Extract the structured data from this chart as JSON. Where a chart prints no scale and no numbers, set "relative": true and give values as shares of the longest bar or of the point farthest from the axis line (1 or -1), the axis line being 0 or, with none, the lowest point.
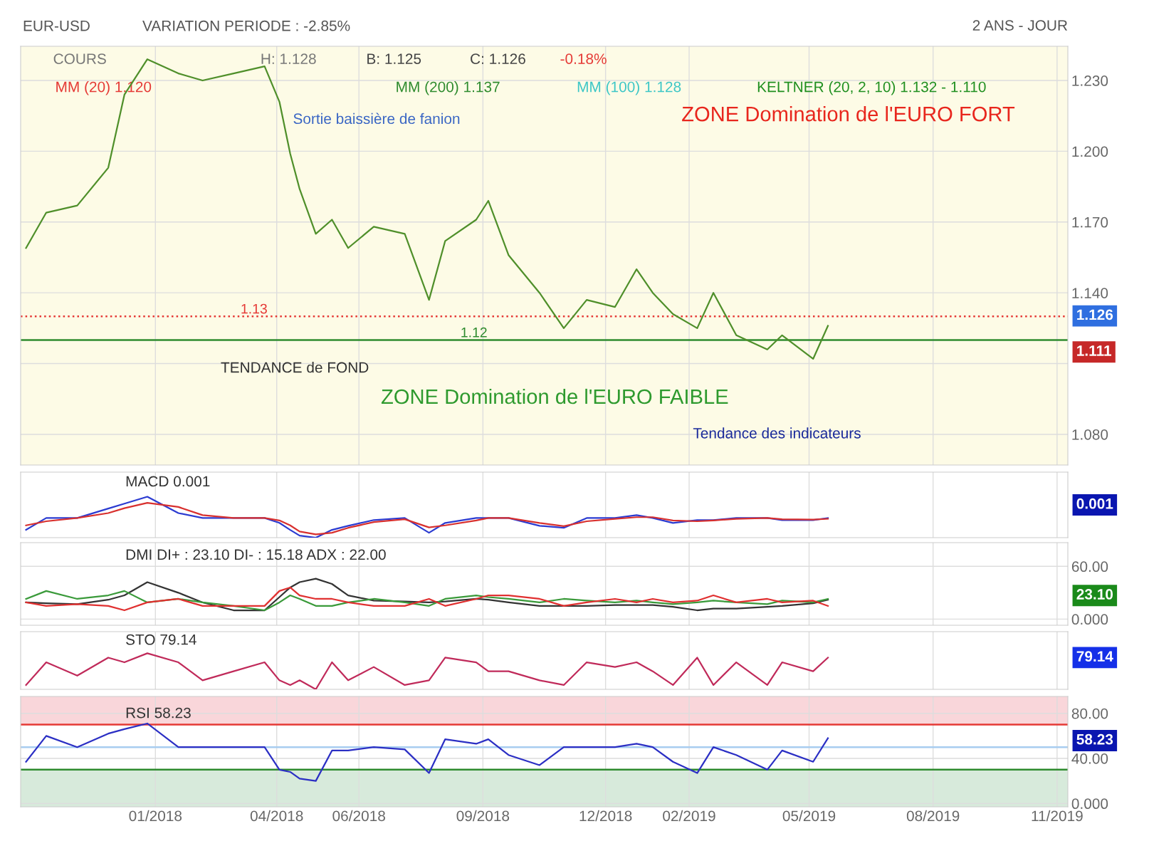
{
  "chart_data": [
    {
      "type": "line",
      "title": "EUR-USD",
      "subtitle": "VARIATION PERIODE : -2.85%",
      "x": [
        "2017-09-27",
        "2017-10-12",
        "2017-11-04",
        "2017-11-27",
        "2017-12-09",
        "2017-12-26",
        "2018-01-18",
        "2018-02-05",
        "2018-02-28",
        "2018-03-23",
        "2018-04-03",
        "2018-04-11",
        "2018-04-18",
        "2018-04-30",
        "2018-05-12",
        "2018-05-24",
        "2018-06-12",
        "2018-07-05",
        "2018-07-23",
        "2018-08-04",
        "2018-08-27",
        "2018-09-05",
        "2018-09-20",
        "2018-10-13",
        "2018-10-31",
        "2018-11-17",
        "2018-12-08",
        "2018-12-24",
        "2019-01-05",
        "2019-01-20",
        "2019-02-07",
        "2019-02-19",
        "2019-03-08",
        "2019-03-31",
        "2019-04-11",
        "2019-05-04",
        "2019-05-15"
      ],
      "series": [
        {
          "color": "#4f8f2a",
          "values": [
            1.159,
            1.174,
            1.177,
            1.193,
            1.224,
            1.239,
            1.233,
            1.23,
            1.233,
            1.236,
            1.221,
            1.199,
            1.184,
            1.165,
            1.171,
            1.159,
            1.168,
            1.165,
            1.137,
            1.162,
            1.171,
            1.179,
            1.156,
            1.14,
            1.125,
            1.137,
            1.134,
            1.15,
            1.14,
            1.131,
            1.125,
            1.14,
            1.122,
            1.116,
            1.122,
            1.112,
            1.126
          ]
        }
      ],
      "xlim": [
        "2017-09-23",
        "2019-11-09"
      ],
      "xticks": [
        {
          "value": "2018-01-01",
          "label": null
        },
        {
          "value": "2018-04-01",
          "label": null
        },
        {
          "value": "2018-06-01",
          "label": null
        },
        {
          "value": "2018-09-01",
          "label": null
        },
        {
          "value": "2018-12-01",
          "label": null
        },
        {
          "value": "2019-02-01",
          "label": null
        },
        {
          "value": "2019-05-01",
          "label": null
        },
        {
          "value": "2019-08-01",
          "label": null
        },
        {
          "value": "2019-11-01",
          "label": null
        }
      ],
      "ylim": [
        1.067,
        1.2445
      ],
      "yticks": [
        {
          "value": 1.08,
          "label": "1.080"
        },
        {
          "value": 1.11,
          "label": null
        },
        {
          "value": 1.14,
          "label": "1.140"
        },
        {
          "value": 1.17,
          "label": "1.170"
        },
        {
          "value": 1.2,
          "label": "1.200"
        },
        {
          "value": 1.23,
          "label": "1.230"
        }
      ],
      "tick_labels": "y",
      "grid": true,
      "ref_lines": [
        {
          "axis": "y",
          "value": 1.13,
          "label": "1.13",
          "color": "#e53935",
          "line_style": "dotted"
        },
        {
          "axis": "y",
          "value": 1.12,
          "label": "1.12",
          "color": "#2e8b2e",
          "line_style": "solid"
        }
      ],
      "annotations": [
        "2 ANS - JOUR",
        "COURS",
        "H: 1.128",
        "B: 1.125",
        "C: 1.126",
        "-0.18%",
        "MM (20) 1.120",
        "MM (200) 1.137",
        "MM (100) 1.128",
        "KELTNER (20, 2, 10) 1.132 - 1.110",
        "Sortie baissière de fanion",
        "ZONE Domination de l'EURO FORT",
        "TENDANCE de FOND",
        "ZONE Domination de l'EURO FAIBLE",
        "Tendance des indicateurs",
        "1.126",
        "1.111"
      ]
    },
    {
      "type": "line",
      "title": "MACD 0.001",
      "relative": true,
      "x": [
        "2017-09-27",
        "2017-10-12",
        "2017-11-04",
        "2017-11-27",
        "2017-12-09",
        "2017-12-26",
        "2018-01-18",
        "2018-02-05",
        "2018-02-28",
        "2018-03-23",
        "2018-04-03",
        "2018-04-11",
        "2018-04-18",
        "2018-04-30",
        "2018-05-12",
        "2018-05-24",
        "2018-06-12",
        "2018-07-05",
        "2018-07-23",
        "2018-08-04",
        "2018-08-27",
        "2018-09-05",
        "2018-09-20",
        "2018-10-13",
        "2018-10-31",
        "2018-11-17",
        "2018-12-08",
        "2018-12-24",
        "2019-01-05",
        "2019-01-20",
        "2019-02-07",
        "2019-02-19",
        "2019-03-08",
        "2019-03-31",
        "2019-04-11",
        "2019-05-04",
        "2019-05-15"
      ],
      "series": [
        {
          "color": "#2b3bd1",
          "values": [
            0.19,
            0.48,
            0.48,
            0.71,
            0.83,
            1,
            0.6,
            0.48,
            0.48,
            0.48,
            0.36,
            0.19,
            0.05,
            0,
            0.19,
            0.29,
            0.43,
            0.48,
            0.12,
            0.36,
            0.48,
            0.48,
            0.48,
            0.29,
            0.24,
            0.48,
            0.48,
            0.55,
            0.48,
            0.36,
            0.43,
            0.43,
            0.48,
            0.48,
            0.43,
            0.43,
            0.48
          ]
        },
        {
          "color": "#d8302e",
          "values": [
            0.3,
            0.4,
            0.48,
            0.6,
            0.72,
            0.85,
            0.75,
            0.55,
            0.48,
            0.48,
            0.42,
            0.3,
            0.15,
            0.08,
            0.12,
            0.24,
            0.38,
            0.45,
            0.25,
            0.3,
            0.42,
            0.48,
            0.48,
            0.36,
            0.28,
            0.4,
            0.46,
            0.5,
            0.5,
            0.42,
            0.4,
            0.42,
            0.46,
            0.48,
            0.45,
            0.44,
            0.46
          ]
        }
      ],
      "xlim": [
        "2017-09-23",
        "2019-11-09"
      ],
      "xticks": [
        {
          "value": "2018-01-01",
          "label": null
        },
        {
          "value": "2018-04-01",
          "label": null
        },
        {
          "value": "2018-06-01",
          "label": null
        },
        {
          "value": "2018-09-01",
          "label": null
        },
        {
          "value": "2018-12-01",
          "label": null
        },
        {
          "value": "2019-02-01",
          "label": null
        },
        {
          "value": "2019-05-01",
          "label": null
        },
        {
          "value": "2019-08-01",
          "label": null
        },
        {
          "value": "2019-11-01",
          "label": null
        }
      ],
      "tick_labels": false,
      "grid": true,
      "annotations": [
        "0.001"
      ]
    },
    {
      "type": "line",
      "title": "DMI DI+ : 23.10 DI- : 15.18 ADX : 22.00",
      "x": [
        "2017-09-27",
        "2017-10-12",
        "2017-11-04",
        "2017-11-27",
        "2017-12-09",
        "2017-12-26",
        "2018-01-18",
        "2018-02-05",
        "2018-02-28",
        "2018-03-23",
        "2018-04-03",
        "2018-04-11",
        "2018-04-18",
        "2018-04-30",
        "2018-05-12",
        "2018-05-24",
        "2018-06-12",
        "2018-07-05",
        "2018-07-23",
        "2018-08-04",
        "2018-08-27",
        "2018-09-05",
        "2018-09-20",
        "2018-10-13",
        "2018-10-31",
        "2018-11-17",
        "2018-12-08",
        "2018-12-24",
        "2019-01-05",
        "2019-01-20",
        "2019-02-07",
        "2019-02-19",
        "2019-03-08",
        "2019-03-31",
        "2019-04-11",
        "2019-05-04",
        "2019-05-15"
      ],
      "series": [
        {
          "color": "#333333",
          "values": [
            19,
            18,
            17,
            22,
            27,
            42,
            30,
            19,
            10,
            10,
            25,
            36,
            42,
            46,
            40,
            27,
            21,
            20,
            19,
            20,
            23,
            22,
            19,
            15,
            15,
            15,
            16,
            16,
            16,
            14,
            10,
            12,
            12,
            14,
            15,
            18,
            22
          ]
        },
        {
          "color": "#3a9a3a",
          "values": [
            23,
            32,
            23,
            27,
            32,
            19,
            23,
            19,
            15,
            10,
            19,
            27,
            23,
            15,
            15,
            19,
            23,
            19,
            15,
            23,
            27,
            25,
            23,
            19,
            23,
            21,
            19,
            21,
            19,
            17,
            19,
            21,
            19,
            17,
            21,
            19,
            23
          ]
        },
        {
          "color": "#e03030",
          "values": [
            19,
            15,
            17,
            15,
            10,
            19,
            23,
            15,
            15,
            15,
            32,
            36,
            27,
            23,
            23,
            19,
            15,
            15,
            23,
            15,
            23,
            27,
            27,
            23,
            15,
            19,
            23,
            19,
            23,
            19,
            21,
            27,
            19,
            23,
            19,
            21,
            15
          ]
        }
      ],
      "xlim": [
        "2017-09-23",
        "2019-11-09"
      ],
      "xticks": [
        {
          "value": "2018-01-01",
          "label": null
        },
        {
          "value": "2018-04-01",
          "label": null
        },
        {
          "value": "2018-06-01",
          "label": null
        },
        {
          "value": "2018-09-01",
          "label": null
        },
        {
          "value": "2018-12-01",
          "label": null
        },
        {
          "value": "2019-02-01",
          "label": null
        },
        {
          "value": "2019-05-01",
          "label": null
        },
        {
          "value": "2019-08-01",
          "label": null
        },
        {
          "value": "2019-11-01",
          "label": null
        }
      ],
      "ylim": [
        -7,
        87
      ],
      "yticks": [
        {
          "value": 0,
          "label": "0.000"
        },
        {
          "value": 60,
          "label": "60.00"
        }
      ],
      "tick_labels": "y",
      "grid": true,
      "annotations": [
        "23.10"
      ]
    },
    {
      "type": "line",
      "title": "STO 79.14",
      "relative": true,
      "x": [
        "2017-09-27",
        "2017-10-12",
        "2017-11-04",
        "2017-11-27",
        "2017-12-09",
        "2017-12-26",
        "2018-01-18",
        "2018-02-05",
        "2018-02-28",
        "2018-03-23",
        "2018-04-03",
        "2018-04-11",
        "2018-04-18",
        "2018-04-30",
        "2018-05-12",
        "2018-05-24",
        "2018-06-12",
        "2018-07-05",
        "2018-07-23",
        "2018-08-04",
        "2018-08-27",
        "2018-09-05",
        "2018-09-20",
        "2018-10-13",
        "2018-10-31",
        "2018-11-17",
        "2018-12-08",
        "2018-12-24",
        "2019-01-05",
        "2019-01-20",
        "2019-02-07",
        "2019-02-19",
        "2019-03-08",
        "2019-03-31",
        "2019-04-11",
        "2019-05-04",
        "2019-05-15"
      ],
      "series": [
        {
          "color": "#c02a5a",
          "values": [
            0.12,
            0.75,
            0.38,
            0.88,
            0.75,
            1,
            0.75,
            0.25,
            0.5,
            0.75,
            0.25,
            0.12,
            0.25,
            0,
            0.75,
            0.25,
            0.62,
            0.12,
            0.25,
            0.88,
            0.75,
            0.5,
            0.5,
            0.25,
            0.12,
            0.75,
            0.62,
            0.75,
            0.5,
            0.12,
            0.88,
            0.12,
            0.75,
            0.12,
            0.75,
            0.5,
            0.88
          ]
        }
      ],
      "xlim": [
        "2017-09-23",
        "2019-11-09"
      ],
      "xticks": [
        {
          "value": "2018-01-01",
          "label": null
        },
        {
          "value": "2018-04-01",
          "label": null
        },
        {
          "value": "2018-06-01",
          "label": null
        },
        {
          "value": "2018-09-01",
          "label": null
        },
        {
          "value": "2018-12-01",
          "label": null
        },
        {
          "value": "2019-02-01",
          "label": null
        },
        {
          "value": "2019-05-01",
          "label": null
        },
        {
          "value": "2019-08-01",
          "label": null
        },
        {
          "value": "2019-11-01",
          "label": null
        }
      ],
      "tick_labels": false,
      "grid": true,
      "annotations": [
        "79.14"
      ]
    },
    {
      "type": "line",
      "title": "RSI 58.23",
      "x": [
        "2017-09-27",
        "2017-10-12",
        "2017-11-04",
        "2017-11-27",
        "2017-12-09",
        "2017-12-26",
        "2018-01-18",
        "2018-02-05",
        "2018-02-28",
        "2018-03-23",
        "2018-04-03",
        "2018-04-11",
        "2018-04-18",
        "2018-04-30",
        "2018-05-12",
        "2018-05-24",
        "2018-06-12",
        "2018-07-05",
        "2018-07-23",
        "2018-08-04",
        "2018-08-27",
        "2018-09-05",
        "2018-09-20",
        "2018-10-13",
        "2018-10-31",
        "2018-11-17",
        "2018-12-08",
        "2018-12-24",
        "2019-01-05",
        "2019-01-20",
        "2019-02-07",
        "2019-02-19",
        "2019-03-08",
        "2019-03-31",
        "2019-04-11",
        "2019-05-04",
        "2019-05-15"
      ],
      "series": [
        {
          "color": "#2b2fc4",
          "values": [
            37,
            60,
            50,
            62,
            66,
            71,
            50,
            50,
            50,
            50,
            30,
            28,
            22,
            20,
            47,
            47,
            50,
            48,
            27,
            57,
            53,
            57,
            43,
            34,
            50,
            50,
            50,
            53,
            50,
            37,
            27,
            50,
            43,
            30,
            47,
            37,
            58
          ]
        }
      ],
      "xlim": [
        "2017-09-23",
        "2019-11-09"
      ],
      "xticks": [
        {
          "value": "2018-01-01",
          "label": "01/2018"
        },
        {
          "value": "2018-04-01",
          "label": "04/2018"
        },
        {
          "value": "2018-06-01",
          "label": "06/2018"
        },
        {
          "value": "2018-09-01",
          "label": "09/2018"
        },
        {
          "value": "2018-12-01",
          "label": "12/2018"
        },
        {
          "value": "2019-02-01",
          "label": "02/2019"
        },
        {
          "value": "2019-05-01",
          "label": "05/2019"
        },
        {
          "value": "2019-08-01",
          "label": "08/2019"
        },
        {
          "value": "2019-11-01",
          "label": "11/2019"
        }
      ],
      "ylim": [
        -3,
        95
      ],
      "yticks": [
        {
          "value": 0,
          "label": "0.000"
        },
        {
          "value": 40,
          "label": "40.00"
        },
        {
          "value": 80,
          "label": "80.00"
        }
      ],
      "grid": true,
      "ref_lines": [
        {
          "axis": "y",
          "value": 70,
          "color": "#e53935"
        },
        {
          "axis": "y",
          "value": 50,
          "color": "#a8cdf0"
        },
        {
          "axis": "y",
          "value": 30,
          "color": "#2e8b2e"
        }
      ],
      "bands": [
        {
          "axis": "y",
          "from": 70,
          "to": 95,
          "color": "#f9d6da"
        },
        {
          "axis": "y",
          "from": -3,
          "to": 30,
          "color": "#d7eadb"
        }
      ],
      "annotations": [
        "58.23"
      ]
    }
  ]
}
